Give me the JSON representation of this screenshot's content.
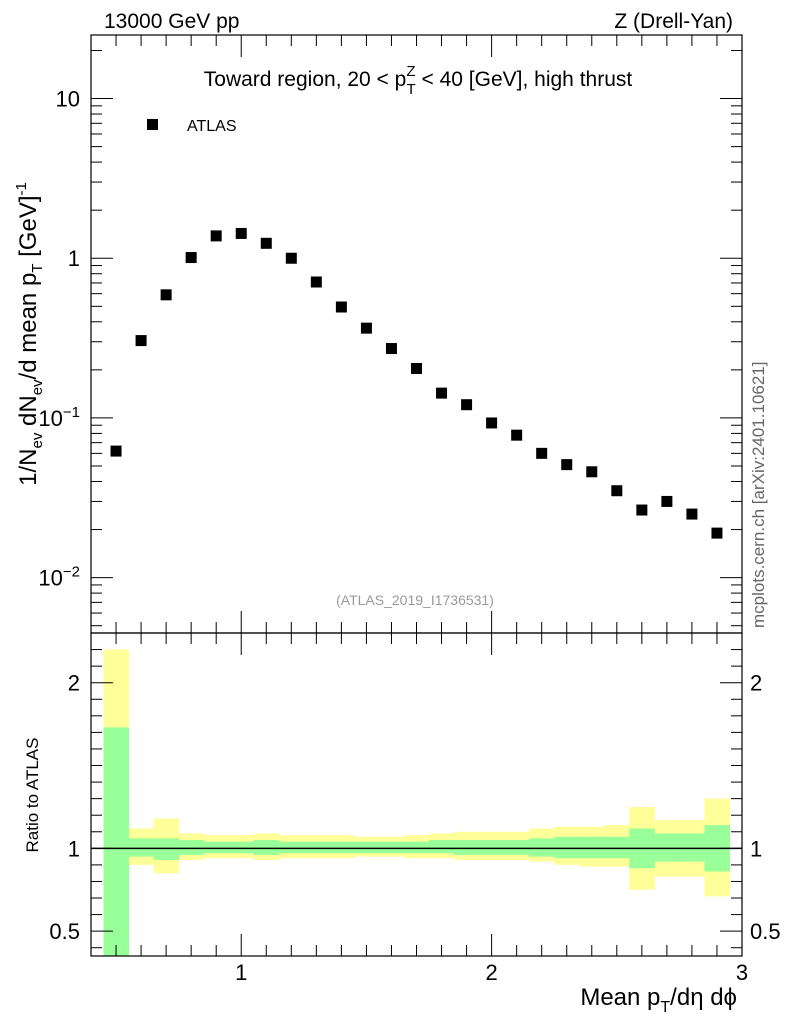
{
  "header": {
    "left": "13000 GeV pp",
    "right": "Z (Drell-Yan)"
  },
  "side_note": "mcplots.cern.ch [arXiv:2401.10621]",
  "chart_data": [
    {
      "type": "scatter",
      "title_parts": {
        "pre": "Toward region, 20 < p",
        "sup": "Z",
        "sub": "T",
        "post": " < 40 [GeV], high thrust"
      },
      "ylabel_parts": {
        "a": "1/N",
        "a_sub": "ev",
        "b": " dN",
        "b_sub": "ev",
        "c": "/d mean p",
        "c_sub": "T",
        "d": " [GeV]",
        "d_sup": "-1"
      },
      "reference": "(ATLAS_2019_I1736531)",
      "yscale": "log",
      "xlim": [
        0.4,
        3.0
      ],
      "ylim": [
        0.0045,
        25
      ],
      "yticks": [
        {
          "value": 10,
          "label": "10"
        },
        {
          "value": 1,
          "label": "1"
        },
        {
          "value": 0.1,
          "base": "10",
          "exp": "−1"
        },
        {
          "value": 0.01,
          "base": "10",
          "exp": "−2"
        }
      ],
      "legend": {
        "label": "ATLAS",
        "position": "top-left",
        "marker": "square"
      },
      "series": [
        {
          "name": "ATLAS",
          "x": [
            0.5,
            0.6,
            0.7,
            0.8,
            0.9,
            1.0,
            1.1,
            1.2,
            1.3,
            1.4,
            1.5,
            1.6,
            1.7,
            1.8,
            1.9,
            2.0,
            2.1,
            2.2,
            2.3,
            2.4,
            2.5,
            2.6,
            2.7,
            2.8,
            2.9
          ],
          "y": [
            0.062,
            0.305,
            0.59,
            1.01,
            1.38,
            1.43,
            1.24,
            1.0,
            0.71,
            0.495,
            0.365,
            0.272,
            0.204,
            0.143,
            0.121,
            0.093,
            0.078,
            0.06,
            0.051,
            0.046,
            0.035,
            0.0265,
            0.03,
            0.025,
            0.019
          ]
        }
      ]
    },
    {
      "type": "area",
      "ylabel": "Ratio to ATLAS",
      "xlabel_parts": {
        "a": "Mean p",
        "a_sub": "T",
        "b": "/dη dϕ"
      },
      "xlim": [
        0.4,
        3.0
      ],
      "ylim": [
        0.35,
        2.3
      ],
      "xticks": [
        {
          "value": 1,
          "label": "1"
        },
        {
          "value": 2,
          "label": "2"
        },
        {
          "value": 3,
          "label": "3"
        }
      ],
      "yticks": [
        {
          "value": 2,
          "label": "2"
        },
        {
          "value": 1,
          "label": "1"
        },
        {
          "value": 0.5,
          "label": "0.5"
        }
      ],
      "reference_line": 1,
      "bin_edges": [
        0.45,
        0.55,
        0.65,
        0.75,
        0.85,
        0.95,
        1.05,
        1.15,
        1.25,
        1.35,
        1.45,
        1.55,
        1.65,
        1.75,
        1.85,
        1.95,
        2.05,
        2.15,
        2.25,
        2.35,
        2.45,
        2.55,
        2.65,
        2.75,
        2.85,
        2.95
      ],
      "bands": [
        {
          "name": "total uncertainty",
          "color": "#ffff99",
          "low": [
            0.3,
            0.9,
            0.85,
            0.93,
            0.94,
            0.94,
            0.93,
            0.94,
            0.94,
            0.94,
            0.95,
            0.95,
            0.94,
            0.94,
            0.93,
            0.93,
            0.93,
            0.92,
            0.9,
            0.89,
            0.89,
            0.75,
            0.83,
            0.83,
            0.71
          ],
          "high": [
            2.2,
            1.12,
            1.18,
            1.09,
            1.08,
            1.08,
            1.09,
            1.08,
            1.08,
            1.08,
            1.07,
            1.07,
            1.08,
            1.09,
            1.1,
            1.1,
            1.1,
            1.12,
            1.13,
            1.13,
            1.14,
            1.25,
            1.17,
            1.17,
            1.3
          ]
        },
        {
          "name": "statistical uncertainty",
          "color": "#99ff99",
          "low": [
            0.3,
            0.95,
            0.93,
            0.96,
            0.97,
            0.97,
            0.96,
            0.97,
            0.97,
            0.97,
            0.97,
            0.97,
            0.97,
            0.97,
            0.96,
            0.96,
            0.96,
            0.95,
            0.94,
            0.94,
            0.94,
            0.88,
            0.92,
            0.92,
            0.86
          ],
          "high": [
            1.73,
            1.06,
            1.06,
            1.05,
            1.04,
            1.04,
            1.05,
            1.04,
            1.04,
            1.04,
            1.04,
            1.04,
            1.04,
            1.05,
            1.05,
            1.05,
            1.05,
            1.06,
            1.07,
            1.07,
            1.07,
            1.12,
            1.09,
            1.09,
            1.14
          ]
        }
      ]
    }
  ]
}
